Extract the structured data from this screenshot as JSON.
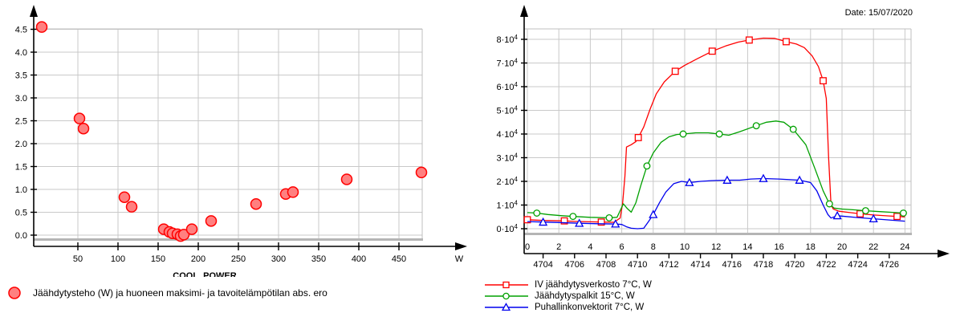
{
  "chart_data": [
    {
      "type": "scatter",
      "title": "",
      "xlabel": "COOL_POWER",
      "x_unit_label": "W",
      "ylabel": "",
      "xlim": [
        0,
        479
      ],
      "ylim": [
        -0.08,
        4.51
      ],
      "grid": true,
      "legend_position": "bottom-left",
      "x_ticks": [
        50,
        100,
        150,
        200,
        250,
        300,
        350,
        400,
        450
      ],
      "y_ticks": [
        0.0,
        0.5,
        1.0,
        1.5,
        2.0,
        2.5,
        3.0,
        3.5,
        4.0,
        4.5
      ],
      "y_tick_decimals": 1,
      "colors": {
        "grid": "#c9c9c9",
        "border": "#bfbfbf",
        "border_bottom": "#b5b5b5",
        "axis": "#000000"
      },
      "series": [
        {
          "name": "Jäähdytysteho (W) ja huoneen maksimi- ja tavoitelämpötilan abs. ero",
          "marker": "filled-circle",
          "color": "#ff0000",
          "fill": "#ff8080",
          "points": [
            [
              5,
              4.55
            ],
            [
              52,
              2.55
            ],
            [
              57,
              2.33
            ],
            [
              108,
              0.83
            ],
            [
              117,
              0.62
            ],
            [
              157,
              0.13
            ],
            [
              164,
              0.07
            ],
            [
              168,
              0.04
            ],
            [
              174,
              0.02
            ],
            [
              178,
              -0.02
            ],
            [
              182,
              0.01
            ],
            [
              192,
              0.13
            ],
            [
              216,
              0.31
            ],
            [
              272,
              0.68
            ],
            [
              309,
              0.9
            ],
            [
              318,
              0.94
            ],
            [
              385,
              1.22
            ],
            [
              478,
              1.37
            ]
          ]
        }
      ]
    },
    {
      "type": "line",
      "title": "",
      "date_label": "Date: 15/07/2020",
      "xlabel": "",
      "ylabel": "",
      "xlim": [
        0,
        24.4
      ],
      "ylim": [
        -1700,
        84400
      ],
      "grid": true,
      "legend_position": "bottom-left",
      "x_ticks_hours": [
        0,
        2,
        4,
        6,
        8,
        10,
        12,
        14,
        16,
        18,
        20,
        22,
        24
      ],
      "x_ticks_cumulative": [
        4704,
        4706,
        4708,
        4710,
        4712,
        4714,
        4716,
        4718,
        4720,
        4722,
        4724,
        4726
      ],
      "x_cumulative_offset_hours": 1,
      "y_ticks_mantissa": [
        0,
        1,
        2,
        3,
        4,
        5,
        6,
        7,
        8
      ],
      "y_tick_suffix": "·10",
      "y_tick_exponent": "4",
      "y_unit_scale": 10000,
      "colors": {
        "grid": "#c9c9c9",
        "border": "#bfbfbf",
        "border_bottom": "#b5b5b5",
        "axis": "#000000"
      },
      "series": [
        {
          "name": "IV jäähdytysverkosto 7°C, W",
          "marker": "square",
          "color": "#ff0000",
          "points": [
            [
              0,
              3800
            ],
            [
              1,
              3500
            ],
            [
              2.35,
              3300
            ],
            [
              3,
              3100
            ],
            [
              4,
              2900
            ],
            [
              4.7,
              2800
            ],
            [
              5.5,
              2700
            ],
            [
              5.9,
              4500
            ],
            [
              6.05,
              10500
            ],
            [
              6.2,
              22000
            ],
            [
              6.3,
              34500
            ],
            [
              6.6,
              35500
            ],
            [
              6.9,
              36800
            ],
            [
              7.05,
              38500
            ],
            [
              7.4,
              43000
            ],
            [
              7.8,
              50500
            ],
            [
              8.2,
              57000
            ],
            [
              8.7,
              62000
            ],
            [
              9.4,
              66500
            ],
            [
              10,
              69000
            ],
            [
              10.8,
              71800
            ],
            [
              11.75,
              75000
            ],
            [
              12.6,
              77200
            ],
            [
              13.4,
              78800
            ],
            [
              14.1,
              79700
            ],
            [
              15,
              80500
            ],
            [
              15.7,
              80400
            ],
            [
              16.45,
              79000
            ],
            [
              17.1,
              78000
            ],
            [
              17.6,
              76500
            ],
            [
              18.1,
              73000
            ],
            [
              18.5,
              68500
            ],
            [
              18.8,
              62500
            ],
            [
              19,
              55000
            ],
            [
              19.15,
              30000
            ],
            [
              19.3,
              10000
            ],
            [
              19.45,
              8300
            ],
            [
              19.8,
              7400
            ],
            [
              20.5,
              6800
            ],
            [
              21.15,
              6300
            ],
            [
              22,
              5800
            ],
            [
              23,
              5400
            ],
            [
              23.5,
              5200
            ],
            [
              24,
              5000
            ]
          ],
          "marker_points": [
            [
              0,
              3800
            ],
            [
              2.35,
              3300
            ],
            [
              4.7,
              2800
            ],
            [
              7.05,
              38500
            ],
            [
              9.4,
              66500
            ],
            [
              11.75,
              75000
            ],
            [
              14.1,
              79700
            ],
            [
              16.45,
              79000
            ],
            [
              18.8,
              62500
            ],
            [
              21.15,
              6300
            ],
            [
              23.5,
              5200
            ]
          ]
        },
        {
          "name": "Jäähdytyspalkit 15°C, W",
          "marker": "circle",
          "color": "#00a000",
          "points": [
            [
              0,
              6800
            ],
            [
              0.6,
              6600
            ],
            [
              1.3,
              6000
            ],
            [
              2.2,
              5500
            ],
            [
              2.9,
              5200
            ],
            [
              4,
              4800
            ],
            [
              5.2,
              4600
            ],
            [
              5.7,
              4800
            ],
            [
              6.1,
              10500
            ],
            [
              6.35,
              8500
            ],
            [
              6.6,
              7000
            ],
            [
              6.9,
              11000
            ],
            [
              7.2,
              18000
            ],
            [
              7.6,
              26500
            ],
            [
              8,
              32000
            ],
            [
              8.5,
              36500
            ],
            [
              9,
              38800
            ],
            [
              9.5,
              39800
            ],
            [
              9.9,
              40000
            ],
            [
              10.7,
              40500
            ],
            [
              11.5,
              40500
            ],
            [
              12.2,
              40000
            ],
            [
              12.8,
              39500
            ],
            [
              13.5,
              41000
            ],
            [
              14.55,
              43500
            ],
            [
              15.2,
              45000
            ],
            [
              15.8,
              45500
            ],
            [
              16.3,
              45000
            ],
            [
              16.9,
              42000
            ],
            [
              17.7,
              35500
            ],
            [
              18.3,
              25000
            ],
            [
              18.8,
              16000
            ],
            [
              19.2,
              10500
            ],
            [
              19.5,
              8700
            ],
            [
              20,
              8300
            ],
            [
              20.7,
              8000
            ],
            [
              21.5,
              7600
            ],
            [
              22.5,
              7200
            ],
            [
              23.2,
              6900
            ],
            [
              23.9,
              6600
            ],
            [
              24,
              6500
            ]
          ],
          "marker_points": [
            [
              0.6,
              6600
            ],
            [
              2.9,
              5200
            ],
            [
              5.2,
              4600
            ],
            [
              7.6,
              26500
            ],
            [
              9.9,
              40000
            ],
            [
              12.2,
              40000
            ],
            [
              14.55,
              43500
            ],
            [
              16.9,
              42000
            ],
            [
              19.2,
              10500
            ],
            [
              21.5,
              7600
            ],
            [
              23.9,
              6600
            ]
          ]
        },
        {
          "name": "Puhallinkonvektorit 7°C, W",
          "marker": "triangle",
          "color": "#0000ee",
          "points": [
            [
              0,
              3000
            ],
            [
              1,
              2800
            ],
            [
              2,
              2600
            ],
            [
              3.3,
              2300
            ],
            [
              4.5,
              2100
            ],
            [
              5.6,
              2000
            ],
            [
              6,
              1800
            ],
            [
              6.3,
              800
            ],
            [
              6.6,
              200
            ],
            [
              7,
              0
            ],
            [
              7.4,
              200
            ],
            [
              7.7,
              3000
            ],
            [
              8,
              6000
            ],
            [
              8.4,
              11000
            ],
            [
              8.8,
              15500
            ],
            [
              9.3,
              19000
            ],
            [
              9.8,
              20000
            ],
            [
              10.3,
              19500
            ],
            [
              11,
              20000
            ],
            [
              11.7,
              20300
            ],
            [
              12.7,
              20500
            ],
            [
              13.5,
              20500
            ],
            [
              14.2,
              21000
            ],
            [
              15,
              21200
            ],
            [
              16,
              21000
            ],
            [
              17.3,
              20500
            ],
            [
              18,
              19500
            ],
            [
              18.4,
              16000
            ],
            [
              18.8,
              10000
            ],
            [
              19.1,
              6000
            ],
            [
              19.3,
              4500
            ],
            [
              19.7,
              5500
            ],
            [
              20.2,
              5200
            ],
            [
              21,
              4700
            ],
            [
              22,
              4200
            ],
            [
              23,
              3700
            ],
            [
              24,
              3200
            ]
          ],
          "marker_points": [
            [
              1,
              2800
            ],
            [
              3.3,
              2300
            ],
            [
              5.6,
              2000
            ],
            [
              8,
              6000
            ],
            [
              10.3,
              19500
            ],
            [
              12.7,
              20500
            ],
            [
              15,
              21200
            ],
            [
              17.3,
              20500
            ],
            [
              19.7,
              5500
            ],
            [
              22,
              4200
            ]
          ]
        }
      ]
    }
  ]
}
